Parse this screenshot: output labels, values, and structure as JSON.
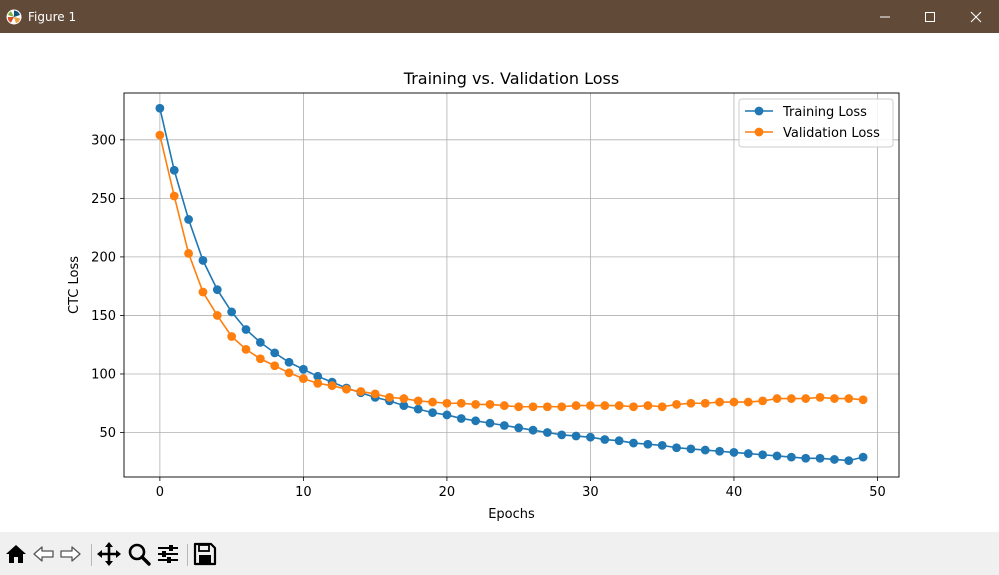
{
  "window": {
    "title": "Figure 1",
    "icon": "matplotlib-icon",
    "controls": [
      "minimize-icon",
      "maximize-icon",
      "close-icon"
    ]
  },
  "toolbar": {
    "buttons": [
      "home-icon",
      "back-icon",
      "forward-icon",
      "pan-icon",
      "zoom-icon",
      "configure-subplots-icon",
      "save-icon"
    ]
  },
  "chart_data": {
    "type": "line",
    "title": "Training vs. Validation Loss",
    "xlabel": "Epochs",
    "ylabel": "CTC Loss",
    "xlim": [
      -2.5,
      51.5
    ],
    "ylim": [
      12,
      340
    ],
    "xticks": [
      0,
      10,
      20,
      30,
      40,
      50
    ],
    "yticks": [
      50,
      100,
      150,
      200,
      250,
      300
    ],
    "grid": true,
    "legend_position": "top-right",
    "x": [
      0,
      1,
      2,
      3,
      4,
      5,
      6,
      7,
      8,
      9,
      10,
      11,
      12,
      13,
      14,
      15,
      16,
      17,
      18,
      19,
      20,
      21,
      22,
      23,
      24,
      25,
      26,
      27,
      28,
      29,
      30,
      31,
      32,
      33,
      34,
      35,
      36,
      37,
      38,
      39,
      40,
      41,
      42,
      43,
      44,
      45,
      46,
      47,
      48,
      49
    ],
    "series": [
      {
        "name": "Training Loss",
        "color": "#1f77b4",
        "values": [
          327,
          274,
          232,
          197,
          172,
          153,
          138,
          127,
          118,
          110,
          104,
          98,
          93,
          88,
          84,
          80,
          77,
          73,
          70,
          67,
          65,
          62,
          60,
          58,
          56,
          54,
          52,
          50,
          48,
          47,
          46,
          44,
          43,
          41,
          40,
          39,
          37,
          36,
          35,
          34,
          33,
          32,
          31,
          30,
          29,
          28,
          28,
          27,
          26,
          29
        ]
      },
      {
        "name": "Validation Loss",
        "color": "#ff7f0e",
        "values": [
          304,
          252,
          203,
          170,
          150,
          132,
          121,
          113,
          107,
          101,
          96,
          92,
          90,
          87,
          85,
          83,
          80,
          79,
          77,
          76,
          75,
          75,
          74,
          74,
          73,
          72,
          72,
          72,
          72,
          73,
          73,
          73,
          73,
          72,
          73,
          72,
          74,
          75,
          75,
          76,
          76,
          76,
          77,
          79,
          79,
          79,
          80,
          79,
          79,
          78
        ]
      }
    ]
  }
}
